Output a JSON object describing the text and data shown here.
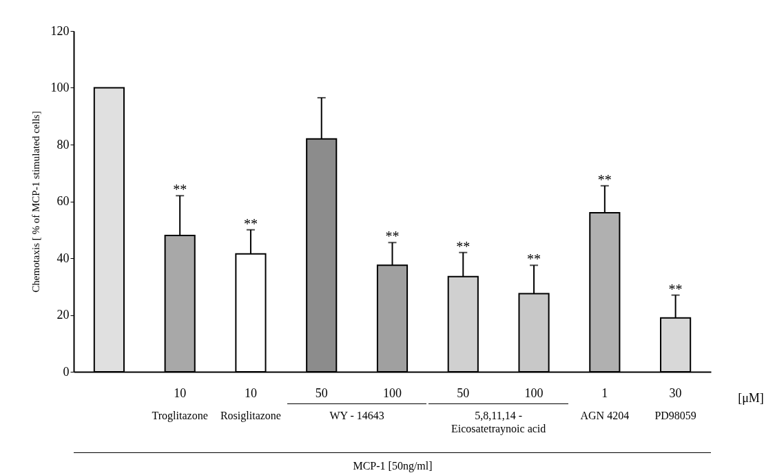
{
  "chart_data": {
    "type": "bar",
    "ylabel": "Chemotaxis [ % of MCP-1 stimulated cells]",
    "categories": [
      null,
      "10",
      "10",
      "50",
      "100",
      "50",
      "100",
      "1",
      "30"
    ],
    "values": [
      100,
      48,
      41.5,
      82,
      37.5,
      33.5,
      27.5,
      56,
      19
    ],
    "errors": [
      null,
      [
        48,
        62
      ],
      [
        41.5,
        50
      ],
      [
        82,
        96.5
      ],
      [
        37.5,
        45.5
      ],
      [
        33.5,
        42
      ],
      [
        27.5,
        37.5
      ],
      [
        56,
        65.5
      ],
      [
        19,
        27
      ]
    ],
    "value_labels": [
      null,
      "**",
      "**",
      null,
      "**",
      "**",
      "**",
      "**",
      "**"
    ],
    "colors": [
      "#e0e0e0",
      "#a8a8a8",
      "#ffffff",
      "#8c8c8c",
      "#a0a0a0",
      "#d0d0d0",
      "#c8c8c8",
      "#b0b0b0",
      "#d8d8d8"
    ],
    "ylim": [
      0,
      120
    ],
    "yticks": [
      0,
      20,
      40,
      60,
      80,
      100,
      120
    ],
    "grid": false,
    "annotations": [
      "[μM]",
      "Troglitazone",
      "Rosiglitazone",
      "WY - 14643",
      "5,8,11,14 -\nEicosatetraynoic acid",
      "AGN 4204",
      "PD98059",
      "MCP-1 [50ng/ml]"
    ]
  }
}
